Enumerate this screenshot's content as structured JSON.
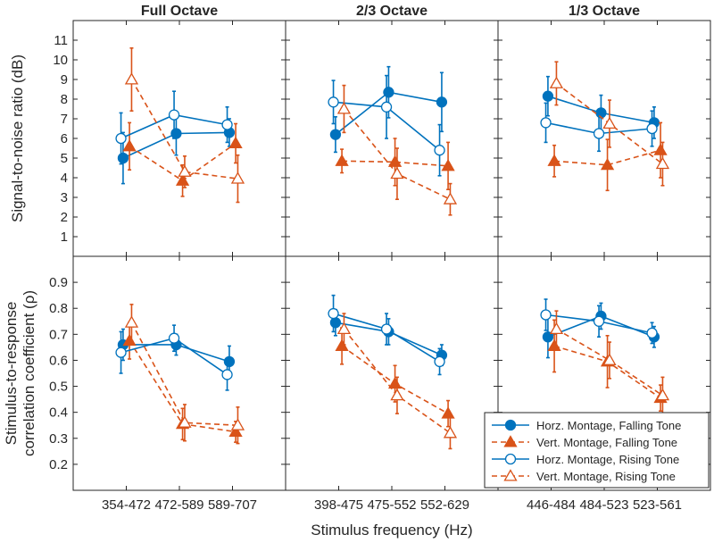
{
  "chart_data": {
    "type": "line",
    "xlabel": "Stimulus frequency (Hz)",
    "column_titles": [
      "Full Octave",
      "2/3 Octave",
      "1/3 Octave"
    ],
    "column_categories": [
      [
        "354-472",
        "472-589",
        "589-707"
      ],
      [
        "398-475",
        "475-552",
        "552-629"
      ],
      [
        "446-484",
        "484-523",
        "523-561"
      ]
    ],
    "series_styles": [
      {
        "name": "Horz. Montage, Falling Tone",
        "color": "#0072BD",
        "marker": "circle",
        "filled": true,
        "dashed": false,
        "offset": -0.06
      },
      {
        "name": "Vert. Montage, Falling Tone",
        "color": "#D95319",
        "marker": "triangle",
        "filled": true,
        "dashed": true,
        "offset": 0.06
      },
      {
        "name": "Horz. Montage, Rising Tone",
        "color": "#0072BD",
        "marker": "circle",
        "filled": false,
        "dashed": false,
        "offset": -0.1
      },
      {
        "name": "Vert. Montage, Rising Tone",
        "color": "#D95319",
        "marker": "triangle",
        "filled": false,
        "dashed": true,
        "offset": 0.1
      }
    ],
    "rows": [
      {
        "ylabel": [
          "Signal-to-noise ratio (dB)"
        ],
        "ylim": [
          0,
          12
        ],
        "ticks": [
          1,
          2,
          3,
          4,
          5,
          6,
          7,
          8,
          9,
          10,
          11
        ],
        "tick_labels": [
          "1",
          "2",
          "3",
          "4",
          "5",
          "6",
          "7",
          "8",
          "9",
          "10",
          "11"
        ],
        "panels": [
          [
            {
              "values": [
                5.0,
                6.25,
                6.3
              ],
              "err": [
                1.3,
                1.1,
                0.7
              ]
            },
            {
              "values": [
                5.6,
                3.85,
                5.75
              ],
              "err": [
                1.2,
                0.8,
                1.0
              ]
            },
            {
              "values": [
                6.0,
                7.2,
                6.7
              ],
              "err": [
                1.3,
                1.2,
                0.9
              ]
            },
            {
              "values": [
                9.0,
                4.3,
                3.95
              ],
              "err": [
                1.6,
                0.8,
                1.2
              ]
            }
          ],
          [
            {
              "values": [
                6.2,
                8.35,
                7.85
              ],
              "err": [
                0.9,
                1.3,
                1.5
              ]
            },
            {
              "values": [
                4.85,
                4.8,
                4.6
              ],
              "err": [
                0.6,
                1.2,
                1.2
              ]
            },
            {
              "values": [
                7.85,
                7.6,
                5.4
              ],
              "err": [
                1.1,
                1.6,
                1.3
              ]
            },
            {
              "values": [
                7.5,
                4.2,
                2.9
              ],
              "err": [
                1.2,
                1.3,
                0.8
              ]
            }
          ],
          [
            {
              "values": [
                8.15,
                7.3,
                6.8
              ],
              "err": [
                1.0,
                0.9,
                0.8
              ]
            },
            {
              "values": [
                4.85,
                4.65,
                5.4
              ],
              "err": [
                0.8,
                1.3,
                1.4
              ]
            },
            {
              "values": [
                6.8,
                6.25,
                6.5
              ],
              "err": [
                1.0,
                0.9,
                0.9
              ]
            },
            {
              "values": [
                8.8,
                6.75,
                4.7
              ],
              "err": [
                1.1,
                1.2,
                1.1
              ]
            }
          ]
        ]
      },
      {
        "ylabel": [
          "Stimulus-to-response",
          "correlation coefficient (ρ)"
        ],
        "ylim": [
          0.1,
          1.0
        ],
        "ticks": [
          0.2,
          0.3,
          0.4,
          0.5,
          0.6,
          0.7,
          0.8,
          0.9
        ],
        "tick_labels": [
          "0.2",
          "0.3",
          "0.4",
          "0.5",
          "0.6",
          "0.7",
          "0.8",
          "0.9"
        ],
        "panels": [
          [
            {
              "values": [
                0.66,
                0.66,
                0.595
              ],
              "err": [
                0.06,
                0.04,
                0.06
              ]
            },
            {
              "values": [
                0.675,
                0.355,
                0.325
              ],
              "err": [
                0.07,
                0.06,
                0.04
              ]
            },
            {
              "values": [
                0.63,
                0.685,
                0.545
              ],
              "err": [
                0.08,
                0.05,
                0.06
              ]
            },
            {
              "values": [
                0.745,
                0.36,
                0.35
              ],
              "err": [
                0.07,
                0.07,
                0.07
              ]
            }
          ],
          [
            {
              "values": [
                0.745,
                0.71,
                0.62
              ],
              "err": [
                0.05,
                0.05,
                0.04
              ]
            },
            {
              "values": [
                0.655,
                0.51,
                0.395
              ],
              "err": [
                0.07,
                0.07,
                0.05
              ]
            },
            {
              "values": [
                0.78,
                0.72,
                0.595
              ],
              "err": [
                0.07,
                0.06,
                0.05
              ]
            },
            {
              "values": [
                0.72,
                0.465,
                0.32
              ],
              "err": [
                0.06,
                0.07,
                0.06
              ]
            }
          ],
          [
            {
              "values": [
                0.69,
                0.77,
                0.69
              ],
              "err": [
                0.08,
                0.05,
                0.04
              ]
            },
            {
              "values": [
                0.655,
                0.595,
                0.455
              ],
              "err": [
                0.1,
                0.1,
                0.05
              ]
            },
            {
              "values": [
                0.775,
                0.75,
                0.705
              ],
              "err": [
                0.06,
                0.06,
                0.04
              ]
            },
            {
              "values": [
                0.72,
                0.6,
                0.465
              ],
              "err": [
                0.07,
                0.07,
                0.07
              ]
            }
          ]
        ]
      }
    ],
    "legend": {
      "placement": "bottom-right",
      "entries": [
        "Horz. Montage, Falling Tone",
        "Vert. Montage, Falling Tone",
        "Horz. Montage, Rising Tone",
        "Vert. Montage, Rising Tone"
      ]
    }
  }
}
